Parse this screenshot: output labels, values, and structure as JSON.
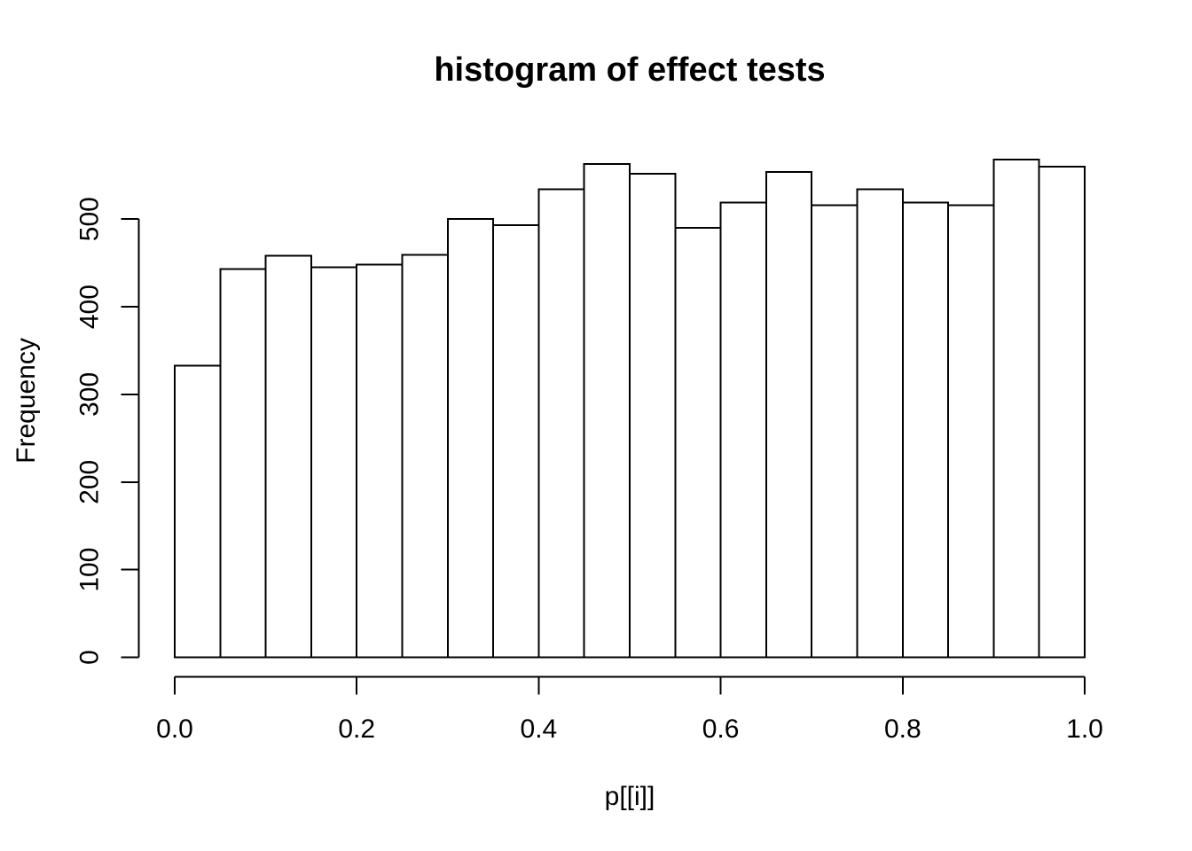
{
  "chart_data": {
    "type": "bar",
    "subtype": "histogram",
    "title": "histogram of effect tests",
    "xlabel": "p[[i]]",
    "ylabel": "Frequency",
    "bin_start": 0.0,
    "bin_width": 0.05,
    "bin_edges": [
      0.0,
      0.05,
      0.1,
      0.15,
      0.2,
      0.25,
      0.3,
      0.35,
      0.4,
      0.45,
      0.5,
      0.55,
      0.6,
      0.65,
      0.7,
      0.75,
      0.8,
      0.85,
      0.9,
      0.95,
      1.0
    ],
    "values": [
      333,
      443,
      458,
      445,
      448,
      459,
      500,
      493,
      534,
      563,
      552,
      490,
      519,
      554,
      516,
      534,
      519,
      516,
      568,
      560
    ],
    "x_ticks": [
      0.0,
      0.2,
      0.4,
      0.6,
      0.8,
      1.0
    ],
    "x_tick_labels": [
      "0.0",
      "0.2",
      "0.4",
      "0.6",
      "0.8",
      "1.0"
    ],
    "y_ticks": [
      0,
      100,
      200,
      300,
      400,
      500
    ],
    "y_tick_labels": [
      "0",
      "100",
      "200",
      "300",
      "400",
      "500"
    ],
    "xlim": [
      0.0,
      1.0
    ],
    "ylim": [
      0,
      575
    ],
    "grid": false,
    "legend": false,
    "bar_fill": "#ffffff",
    "bar_stroke": "#000000",
    "axis_color": "#000000",
    "text_color": "#000000",
    "background": "#ffffff"
  }
}
